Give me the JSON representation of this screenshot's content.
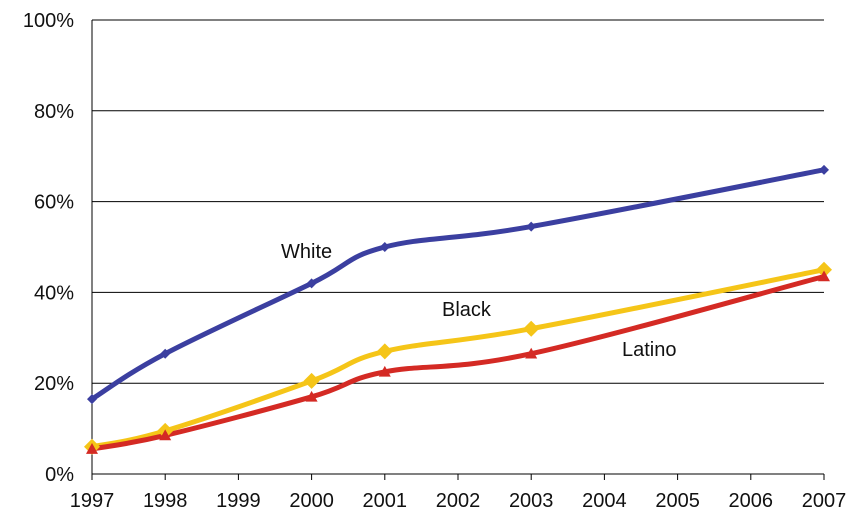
{
  "chart_data": {
    "type": "line",
    "x": [
      1997,
      1998,
      1999,
      2000,
      2001,
      2002,
      2003,
      2004,
      2005,
      2006,
      2007
    ],
    "xlim": [
      1997,
      2007
    ],
    "ylim": [
      0,
      100
    ],
    "y_ticks": [
      "0%",
      "20%",
      "40%",
      "60%",
      "80%",
      "100%"
    ],
    "x_ticks": [
      "1997",
      "1998",
      "1999",
      "2000",
      "2001",
      "2002",
      "2003",
      "2004",
      "2005",
      "2006",
      "2007"
    ],
    "grid": "horizontal",
    "legend": "none",
    "series": [
      {
        "name": "White",
        "color": "#3b3fa0",
        "marker": "diamond",
        "points": [
          [
            1997,
            16.5
          ],
          [
            1998,
            26.5
          ],
          [
            2000,
            42
          ],
          [
            2001,
            50
          ],
          [
            2003,
            54.5
          ],
          [
            2007,
            67
          ]
        ]
      },
      {
        "name": "Black",
        "color": "#f5c518",
        "marker": "diamond",
        "points": [
          [
            1997,
            6
          ],
          [
            1998,
            9.5
          ],
          [
            2000,
            20.5
          ],
          [
            2001,
            27
          ],
          [
            2003,
            32
          ],
          [
            2007,
            45
          ]
        ]
      },
      {
        "name": "Latino",
        "color": "#d42a24",
        "marker": "triangle",
        "points": [
          [
            1997,
            5.5
          ],
          [
            1998,
            8.5
          ],
          [
            2000,
            17
          ],
          [
            2001,
            22.5
          ],
          [
            2003,
            26.5
          ],
          [
            2007,
            43.5
          ]
        ]
      }
    ]
  }
}
